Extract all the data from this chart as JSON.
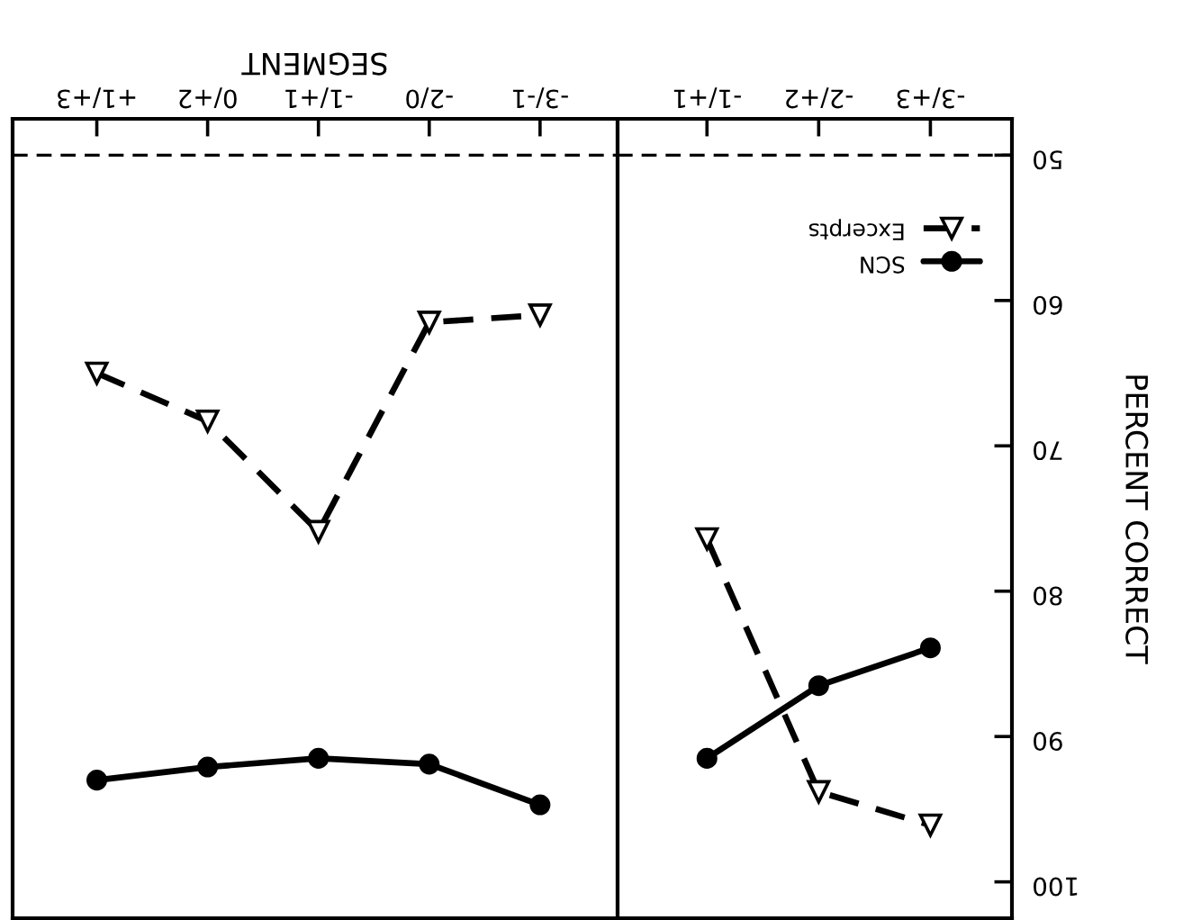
{
  "chart_data": [
    {
      "type": "line",
      "categories": [
        "+1/+3",
        "0/+2",
        "-1/+1",
        "-2/0",
        "-3/-1"
      ],
      "xlabel": "SEGMENT",
      "ylim": [
        102.5,
        47.5
      ],
      "yticks": [
        50,
        60,
        70,
        80,
        90,
        100
      ],
      "tick_labels": "x",
      "grid": false,
      "series": [
        {
          "color": "#000000",
          "marker": "circle",
          "line_style": "solid",
          "values": [
            93.0,
            92.1,
            91.5,
            91.9,
            94.7
          ]
        },
        {
          "color": "#000000",
          "marker": "triangle",
          "line_style": "dashed",
          "values": [
            65.0,
            68.3,
            75.9,
            61.5,
            61.0
          ]
        }
      ],
      "ref_lines": [
        {
          "axis": "y",
          "value": 50,
          "line_style": "dashed",
          "color": "#000000"
        }
      ]
    },
    {
      "type": "line",
      "categories": [
        "-1/+1",
        "-2/+2",
        "-3/+3"
      ],
      "ylabel": "PERCENT CORRECT",
      "ylim": [
        102.5,
        47.5
      ],
      "yticks": [
        50,
        60,
        70,
        80,
        90,
        100
      ],
      "grid": false,
      "legend": "top right",
      "series": [
        {
          "name": "SCN",
          "color": "#000000",
          "marker": "circle",
          "line_style": "solid",
          "values": [
            91.5,
            86.5,
            83.9
          ]
        },
        {
          "name": "Excerpts",
          "color": "#000000",
          "marker": "triangle",
          "line_style": "dashed",
          "values": [
            76.4,
            93.8,
            96.1
          ]
        }
      ],
      "ref_lines": [
        {
          "axis": "y",
          "value": 50,
          "line_style": "dashed",
          "color": "#000000"
        }
      ]
    }
  ]
}
